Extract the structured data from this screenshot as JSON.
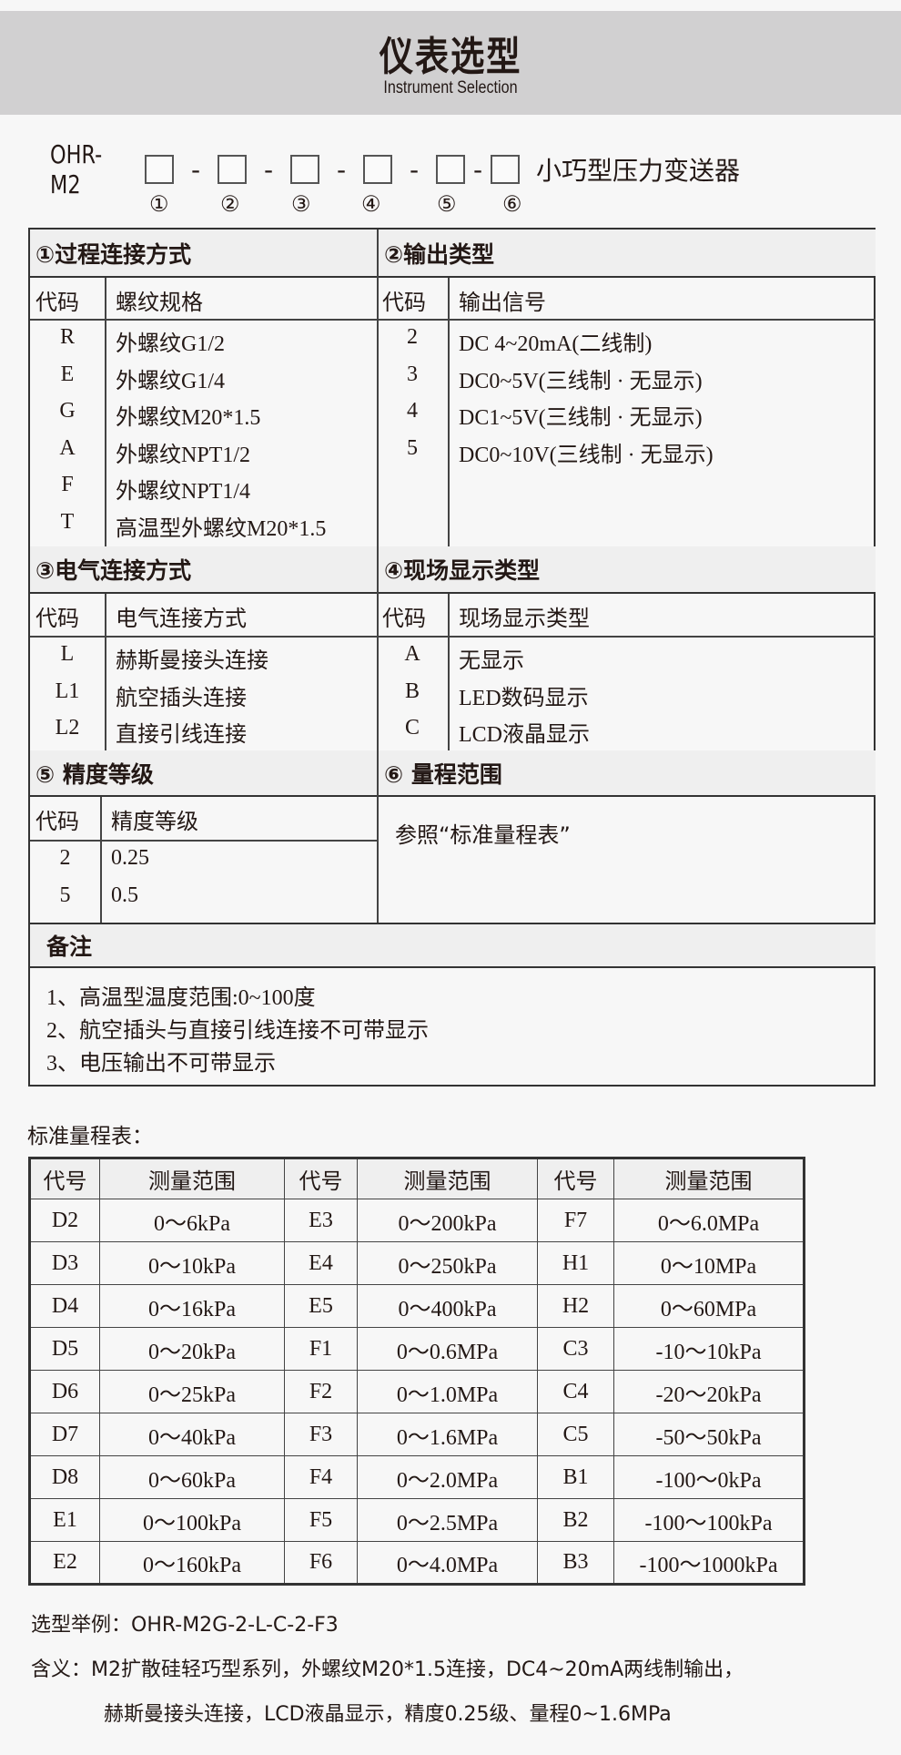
{
  "header": {
    "title": "仪表选型",
    "subtitle": "Instrument Selection"
  },
  "model": {
    "code": "OHR-M2",
    "separator": "-",
    "suffix": "小巧型压力变送器",
    "markers": [
      "①",
      "②",
      "③",
      "④",
      "⑤",
      "⑥"
    ]
  },
  "sections": {
    "s1": {
      "title": "①过程连接方式",
      "col1": "代码",
      "col2": "螺纹规格",
      "rows": [
        [
          "R",
          "外螺纹G1/2"
        ],
        [
          "E",
          "外螺纹G1/4"
        ],
        [
          "G",
          "外螺纹M20*1.5"
        ],
        [
          "A",
          "外螺纹NPT1/2"
        ],
        [
          "F",
          "外螺纹NPT1/4"
        ],
        [
          "T",
          "高温型外螺纹M20*1.5"
        ]
      ]
    },
    "s2": {
      "title": "②输出类型",
      "col1": "代码",
      "col2": "输出信号",
      "rows": [
        [
          "2",
          "DC 4~20mA(二线制)"
        ],
        [
          "3",
          "DC0~5V(三线制 · 无显示)"
        ],
        [
          "4",
          "DC1~5V(三线制 · 无显示)"
        ],
        [
          "5",
          "DC0~10V(三线制 · 无显示)"
        ]
      ]
    },
    "s3": {
      "title": "③电气连接方式",
      "col1": "代码",
      "col2": "电气连接方式",
      "rows": [
        [
          "L",
          "赫斯曼接头连接"
        ],
        [
          "L1",
          "航空插头连接"
        ],
        [
          "L2",
          "直接引线连接"
        ]
      ]
    },
    "s4": {
      "title": "④现场显示类型",
      "col1": "代码",
      "col2": "现场显示类型",
      "rows": [
        [
          "A",
          "无显示"
        ],
        [
          "B",
          "LED数码显示"
        ],
        [
          "C",
          "LCD液晶显示"
        ]
      ]
    },
    "s5": {
      "title": "⑤ 精度等级",
      "col1": "代码",
      "col2": "精度等级",
      "rows": [
        [
          "2",
          "0.25"
        ],
        [
          "5",
          "0.5"
        ]
      ]
    },
    "s6": {
      "title": "⑥ 量程范围",
      "text": "参照“标准量程表”"
    }
  },
  "remarks": {
    "title": "备注",
    "items": [
      "1、高温型温度范围:0~100度",
      "2、航空插头与直接引线连接不可带显示",
      "3、电压输出不可带显示"
    ]
  },
  "range_table": {
    "caption": "标准量程表：",
    "headers": [
      "代号",
      "测量范围",
      "代号",
      "测量范围",
      "代号",
      "测量范围"
    ],
    "rows": [
      [
        "D2",
        "0～6kPa",
        "E3",
        "0～200kPa",
        "F7",
        "0～6.0MPa"
      ],
      [
        "D3",
        "0～10kPa",
        "E4",
        "0～250kPa",
        "H1",
        "0～10MPa"
      ],
      [
        "D4",
        "0～16kPa",
        "E5",
        "0～400kPa",
        "H2",
        "0～60MPa"
      ],
      [
        "D5",
        "0～20kPa",
        "F1",
        "0～0.6MPa",
        "C3",
        "-10～10kPa"
      ],
      [
        "D6",
        "0～25kPa",
        "F2",
        "0～1.0MPa",
        "C4",
        "-20～20kPa"
      ],
      [
        "D7",
        "0～40kPa",
        "F3",
        "0～1.6MPa",
        "C5",
        "-50～50kPa"
      ],
      [
        "D8",
        "0～60kPa",
        "F4",
        "0～2.0MPa",
        "B1",
        "-100～0kPa"
      ],
      [
        "E1",
        "0～100kPa",
        "F5",
        "0～2.5MPa",
        "B2",
        "-100～100kPa"
      ],
      [
        "E2",
        "0～160kPa",
        "F6",
        "0～4.0MPa",
        "B3",
        "-100～1000kPa"
      ]
    ]
  },
  "example": {
    "line": "选型举例：OHR-M2G-2-L-C-2-F3",
    "meaning1": "含义：M2扩散硅轻巧型系列，外螺纹M20*1.5连接，DC4~20mA两线制输出，",
    "meaning2": "赫斯曼接头连接，LCD液晶显示，精度0.25级、量程0~1.6MPa"
  }
}
